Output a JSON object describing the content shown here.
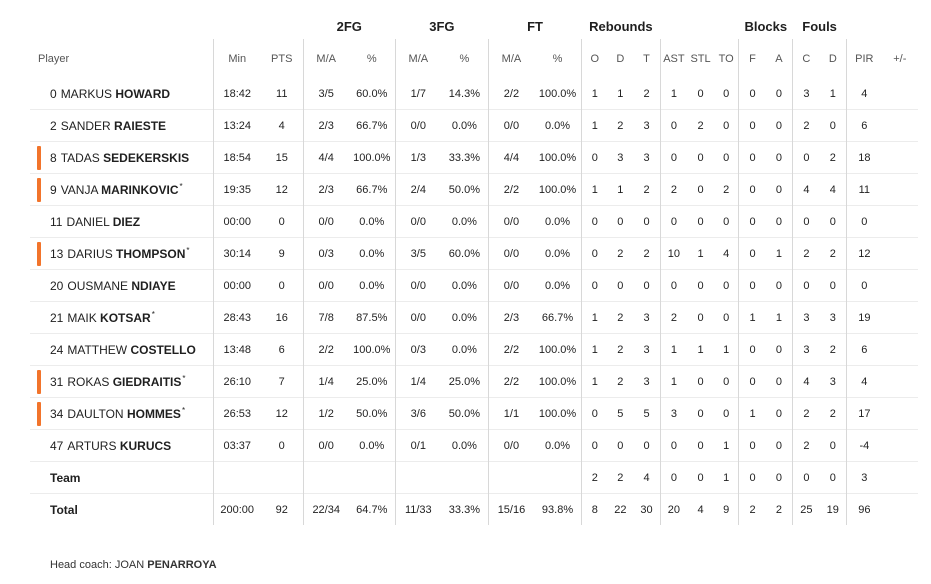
{
  "colors": {
    "starter_marker": "#f2742b"
  },
  "group_headers": {
    "fg2": "2FG",
    "fg3": "3FG",
    "ft": "FT",
    "rebounds": "Rebounds",
    "blocks": "Blocks",
    "fouls": "Fouls"
  },
  "columns": {
    "player": "Player",
    "min": "Min",
    "pts": "PTS",
    "fg2_ma": "M/A",
    "fg2_pct": "%",
    "fg3_ma": "M/A",
    "fg3_pct": "%",
    "ft_ma": "M/A",
    "ft_pct": "%",
    "reb_o": "O",
    "reb_d": "D",
    "reb_t": "T",
    "ast": "AST",
    "stl": "STL",
    "to": "TO",
    "blk_f": "F",
    "blk_a": "A",
    "foul_c": "C",
    "foul_d": "D",
    "pir": "PIR",
    "pm": "+/-"
  },
  "players": [
    {
      "num": "0",
      "first": "MARKUS",
      "last": "HOWARD",
      "star": "",
      "marker": false,
      "min": "18:42",
      "pts": "11",
      "fg2_ma": "3/5",
      "fg2_pct": "60.0%",
      "fg3_ma": "1/7",
      "fg3_pct": "14.3%",
      "ft_ma": "2/2",
      "ft_pct": "100.0%",
      "reb_o": "1",
      "reb_d": "1",
      "reb_t": "2",
      "ast": "1",
      "stl": "0",
      "to": "0",
      "blk_f": "0",
      "blk_a": "0",
      "foul_c": "3",
      "foul_d": "1",
      "pir": "4",
      "pm": ""
    },
    {
      "num": "2",
      "first": "SANDER",
      "last": "RAIESTE",
      "star": "",
      "marker": false,
      "min": "13:24",
      "pts": "4",
      "fg2_ma": "2/3",
      "fg2_pct": "66.7%",
      "fg3_ma": "0/0",
      "fg3_pct": "0.0%",
      "ft_ma": "0/0",
      "ft_pct": "0.0%",
      "reb_o": "1",
      "reb_d": "2",
      "reb_t": "3",
      "ast": "0",
      "stl": "2",
      "to": "0",
      "blk_f": "0",
      "blk_a": "0",
      "foul_c": "2",
      "foul_d": "0",
      "pir": "6",
      "pm": ""
    },
    {
      "num": "8",
      "first": "TADAS",
      "last": "SEDEKERSKIS",
      "star": "",
      "marker": true,
      "min": "18:54",
      "pts": "15",
      "fg2_ma": "4/4",
      "fg2_pct": "100.0%",
      "fg3_ma": "1/3",
      "fg3_pct": "33.3%",
      "ft_ma": "4/4",
      "ft_pct": "100.0%",
      "reb_o": "0",
      "reb_d": "3",
      "reb_t": "3",
      "ast": "0",
      "stl": "0",
      "to": "0",
      "blk_f": "0",
      "blk_a": "0",
      "foul_c": "0",
      "foul_d": "2",
      "pir": "18",
      "pm": ""
    },
    {
      "num": "9",
      "first": "VANJA",
      "last": "MARINKOVIC",
      "star": "*",
      "marker": true,
      "min": "19:35",
      "pts": "12",
      "fg2_ma": "2/3",
      "fg2_pct": "66.7%",
      "fg3_ma": "2/4",
      "fg3_pct": "50.0%",
      "ft_ma": "2/2",
      "ft_pct": "100.0%",
      "reb_o": "1",
      "reb_d": "1",
      "reb_t": "2",
      "ast": "2",
      "stl": "0",
      "to": "2",
      "blk_f": "0",
      "blk_a": "0",
      "foul_c": "4",
      "foul_d": "4",
      "pir": "11",
      "pm": ""
    },
    {
      "num": "11",
      "first": "DANIEL",
      "last": "DIEZ",
      "star": "",
      "marker": false,
      "min": "00:00",
      "pts": "0",
      "fg2_ma": "0/0",
      "fg2_pct": "0.0%",
      "fg3_ma": "0/0",
      "fg3_pct": "0.0%",
      "ft_ma": "0/0",
      "ft_pct": "0.0%",
      "reb_o": "0",
      "reb_d": "0",
      "reb_t": "0",
      "ast": "0",
      "stl": "0",
      "to": "0",
      "blk_f": "0",
      "blk_a": "0",
      "foul_c": "0",
      "foul_d": "0",
      "pir": "0",
      "pm": ""
    },
    {
      "num": "13",
      "first": "DARIUS",
      "last": "THOMPSON",
      "star": "*",
      "marker": true,
      "min": "30:14",
      "pts": "9",
      "fg2_ma": "0/3",
      "fg2_pct": "0.0%",
      "fg3_ma": "3/5",
      "fg3_pct": "60.0%",
      "ft_ma": "0/0",
      "ft_pct": "0.0%",
      "reb_o": "0",
      "reb_d": "2",
      "reb_t": "2",
      "ast": "10",
      "stl": "1",
      "to": "4",
      "blk_f": "0",
      "blk_a": "1",
      "foul_c": "2",
      "foul_d": "2",
      "pir": "12",
      "pm": ""
    },
    {
      "num": "20",
      "first": "OUSMANE",
      "last": "NDIAYE",
      "star": "",
      "marker": false,
      "min": "00:00",
      "pts": "0",
      "fg2_ma": "0/0",
      "fg2_pct": "0.0%",
      "fg3_ma": "0/0",
      "fg3_pct": "0.0%",
      "ft_ma": "0/0",
      "ft_pct": "0.0%",
      "reb_o": "0",
      "reb_d": "0",
      "reb_t": "0",
      "ast": "0",
      "stl": "0",
      "to": "0",
      "blk_f": "0",
      "blk_a": "0",
      "foul_c": "0",
      "foul_d": "0",
      "pir": "0",
      "pm": ""
    },
    {
      "num": "21",
      "first": "MAIK",
      "last": "KOTSAR",
      "star": "*",
      "marker": false,
      "min": "28:43",
      "pts": "16",
      "fg2_ma": "7/8",
      "fg2_pct": "87.5%",
      "fg3_ma": "0/0",
      "fg3_pct": "0.0%",
      "ft_ma": "2/3",
      "ft_pct": "66.7%",
      "reb_o": "1",
      "reb_d": "2",
      "reb_t": "3",
      "ast": "2",
      "stl": "0",
      "to": "0",
      "blk_f": "1",
      "blk_a": "1",
      "foul_c": "3",
      "foul_d": "3",
      "pir": "19",
      "pm": ""
    },
    {
      "num": "24",
      "first": "MATTHEW",
      "last": "COSTELLO",
      "star": "",
      "marker": false,
      "min": "13:48",
      "pts": "6",
      "fg2_ma": "2/2",
      "fg2_pct": "100.0%",
      "fg3_ma": "0/3",
      "fg3_pct": "0.0%",
      "ft_ma": "2/2",
      "ft_pct": "100.0%",
      "reb_o": "1",
      "reb_d": "2",
      "reb_t": "3",
      "ast": "1",
      "stl": "1",
      "to": "1",
      "blk_f": "0",
      "blk_a": "0",
      "foul_c": "3",
      "foul_d": "2",
      "pir": "6",
      "pm": ""
    },
    {
      "num": "31",
      "first": "ROKAS",
      "last": "GIEDRAITIS",
      "star": "*",
      "marker": true,
      "min": "26:10",
      "pts": "7",
      "fg2_ma": "1/4",
      "fg2_pct": "25.0%",
      "fg3_ma": "1/4",
      "fg3_pct": "25.0%",
      "ft_ma": "2/2",
      "ft_pct": "100.0%",
      "reb_o": "1",
      "reb_d": "2",
      "reb_t": "3",
      "ast": "1",
      "stl": "0",
      "to": "0",
      "blk_f": "0",
      "blk_a": "0",
      "foul_c": "4",
      "foul_d": "3",
      "pir": "4",
      "pm": ""
    },
    {
      "num": "34",
      "first": "DAULTON",
      "last": "HOMMES",
      "star": "*",
      "marker": true,
      "min": "26:53",
      "pts": "12",
      "fg2_ma": "1/2",
      "fg2_pct": "50.0%",
      "fg3_ma": "3/6",
      "fg3_pct": "50.0%",
      "ft_ma": "1/1",
      "ft_pct": "100.0%",
      "reb_o": "0",
      "reb_d": "5",
      "reb_t": "5",
      "ast": "3",
      "stl": "0",
      "to": "0",
      "blk_f": "1",
      "blk_a": "0",
      "foul_c": "2",
      "foul_d": "2",
      "pir": "17",
      "pm": ""
    },
    {
      "num": "47",
      "first": "ARTURS",
      "last": "KURUCS",
      "star": "",
      "marker": false,
      "min": "03:37",
      "pts": "0",
      "fg2_ma": "0/0",
      "fg2_pct": "0.0%",
      "fg3_ma": "0/1",
      "fg3_pct": "0.0%",
      "ft_ma": "0/0",
      "ft_pct": "0.0%",
      "reb_o": "0",
      "reb_d": "0",
      "reb_t": "0",
      "ast": "0",
      "stl": "0",
      "to": "1",
      "blk_f": "0",
      "blk_a": "0",
      "foul_c": "2",
      "foul_d": "0",
      "pir": "-4",
      "pm": ""
    }
  ],
  "team_row": {
    "label": "Team",
    "min": "",
    "pts": "",
    "fg2_ma": "",
    "fg2_pct": "",
    "fg3_ma": "",
    "fg3_pct": "",
    "ft_ma": "",
    "ft_pct": "",
    "reb_o": "2",
    "reb_d": "2",
    "reb_t": "4",
    "ast": "0",
    "stl": "0",
    "to": "1",
    "blk_f": "0",
    "blk_a": "0",
    "foul_c": "0",
    "foul_d": "0",
    "pir": "3",
    "pm": ""
  },
  "total_row": {
    "label": "Total",
    "min": "200:00",
    "pts": "92",
    "fg2_ma": "22/34",
    "fg2_pct": "64.7%",
    "fg3_ma": "11/33",
    "fg3_pct": "33.3%",
    "ft_ma": "15/16",
    "ft_pct": "93.8%",
    "reb_o": "8",
    "reb_d": "22",
    "reb_t": "30",
    "ast": "20",
    "stl": "4",
    "to": "9",
    "blk_f": "2",
    "blk_a": "2",
    "foul_c": "25",
    "foul_d": "19",
    "pir": "96",
    "pm": ""
  },
  "coach": {
    "label": "Head coach:",
    "first": "JOAN",
    "last": "PENARROYA"
  }
}
